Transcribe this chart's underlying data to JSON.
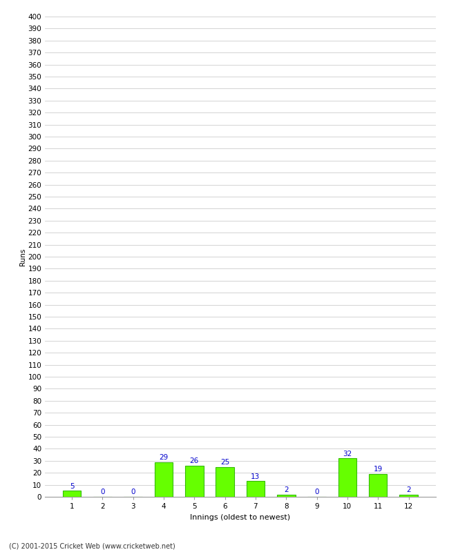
{
  "categories": [
    "1",
    "2",
    "3",
    "4",
    "5",
    "6",
    "7",
    "8",
    "9",
    "10",
    "11",
    "12"
  ],
  "values": [
    5,
    0,
    0,
    29,
    26,
    25,
    13,
    2,
    0,
    32,
    19,
    2
  ],
  "bar_color": "#66ff00",
  "bar_edge_color": "#33bb00",
  "xlabel": "Innings (oldest to newest)",
  "ylabel": "Runs",
  "ylim": [
    0,
    400
  ],
  "ytick_step": 10,
  "background_color": "#ffffff",
  "grid_color": "#cccccc",
  "footer": "(C) 2001-2015 Cricket Web (www.cricketweb.net)",
  "label_color": "#0000cc",
  "label_fontsize": 7.5,
  "tick_fontsize": 7.5,
  "xlabel_fontsize": 8,
  "ylabel_fontsize": 7.5
}
